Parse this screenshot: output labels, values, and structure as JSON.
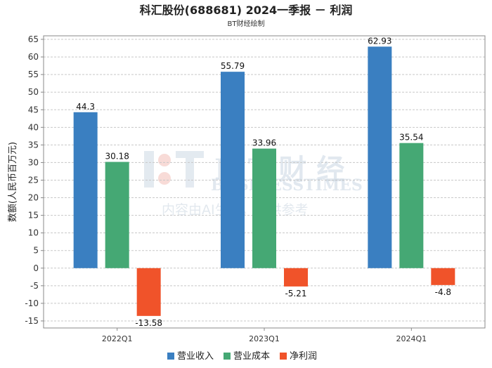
{
  "header": {
    "title": "科汇股份(688681) 2024一季报 － 利润",
    "subtitle": "BT财经绘制"
  },
  "watermark": {
    "brand": "B T 财 经",
    "brand_en": "BUSINESSTIMES",
    "notice": "内容由AI生成，仅供参考"
  },
  "chart_data": {
    "type": "bar",
    "title": "科汇股份(688681) 2024一季报 － 利润",
    "subtitle": "BT财经绘制",
    "xlabel": "",
    "ylabel": "数额(人民币百万元)",
    "ylim": [
      -17,
      66
    ],
    "yticks": [
      -15,
      -10,
      -5,
      0,
      5,
      10,
      15,
      20,
      25,
      30,
      35,
      40,
      45,
      50,
      55,
      60,
      65
    ],
    "grid": true,
    "legend_position": "bottom",
    "categories": [
      "2022Q1",
      "2023Q1",
      "2024Q1"
    ],
    "series": [
      {
        "name": "营业收入",
        "color": "#3a7fc1",
        "values": [
          44.3,
          55.79,
          62.93
        ],
        "labels": [
          "44.3",
          "55.79",
          "62.93"
        ]
      },
      {
        "name": "营业成本",
        "color": "#45a874",
        "values": [
          30.18,
          33.96,
          35.54
        ],
        "labels": [
          "30.18",
          "33.96",
          "35.54"
        ]
      },
      {
        "name": "净利润",
        "color": "#f0532a",
        "values": [
          -13.58,
          -5.21,
          -4.8
        ],
        "labels": [
          "-13.58",
          "-5.21",
          "-4.8"
        ]
      }
    ]
  }
}
